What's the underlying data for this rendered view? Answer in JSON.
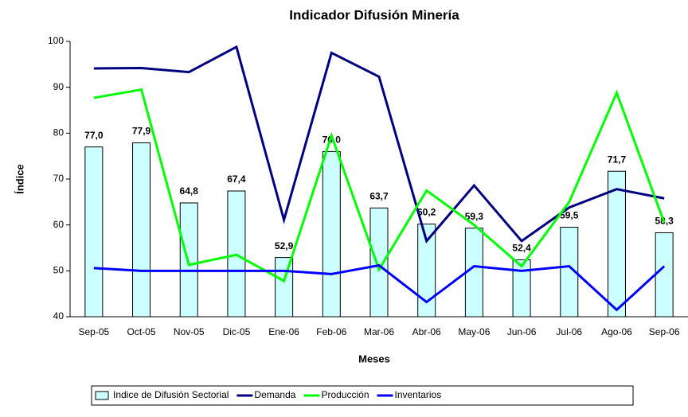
{
  "chart_data": {
    "type": "bar-line",
    "title": "Indicador Difusión Minería",
    "x_label": "Meses",
    "y_label": "Índice",
    "categories": [
      "Sep-05",
      "Oct-05",
      "Nov-05",
      "Dic-05",
      "Ene-06",
      "Feb-06",
      "Mar-06",
      "Abr-06",
      "May-06",
      "Jun-06",
      "Jul-06",
      "Ago-06",
      "Sep-06"
    ],
    "ylim": [
      40,
      100
    ],
    "yticks": [
      40,
      50,
      60,
      70,
      80,
      90,
      100
    ],
    "series": [
      {
        "name": "Indice de Difusión Sectorial",
        "kind": "bar",
        "color": "#ccffff",
        "values": [
          77.0,
          77.9,
          64.8,
          67.4,
          52.9,
          76.0,
          63.7,
          60.2,
          59.3,
          52.4,
          59.5,
          71.7,
          58.3
        ],
        "value_labels": [
          "77,0",
          "77,9",
          "64,8",
          "67,4",
          "52,9",
          "76,0",
          "63,7",
          "60,2",
          "59,3",
          "52,4",
          "59,5",
          "71,7",
          "58,3"
        ]
      },
      {
        "name": "Demanda",
        "kind": "line",
        "color": "#000080",
        "values": [
          94.1,
          94.2,
          93.3,
          98.8,
          61.1,
          97.5,
          92.3,
          56.5,
          68.6,
          56.5,
          63.8,
          67.8,
          65.8
        ]
      },
      {
        "name": "Producción",
        "kind": "line",
        "color": "#00ff00",
        "values": [
          87.7,
          89.5,
          51.3,
          53.5,
          47.8,
          79.5,
          50.3,
          67.5,
          60.0,
          51.0,
          65.0,
          88.8,
          60.5
        ]
      },
      {
        "name": "Inventarios",
        "kind": "line",
        "color": "#0000ff",
        "values": [
          50.6,
          50.0,
          50.0,
          50.0,
          50.0,
          49.3,
          51.2,
          43.2,
          51.0,
          50.0,
          51.0,
          41.5,
          51.0
        ]
      }
    ]
  }
}
